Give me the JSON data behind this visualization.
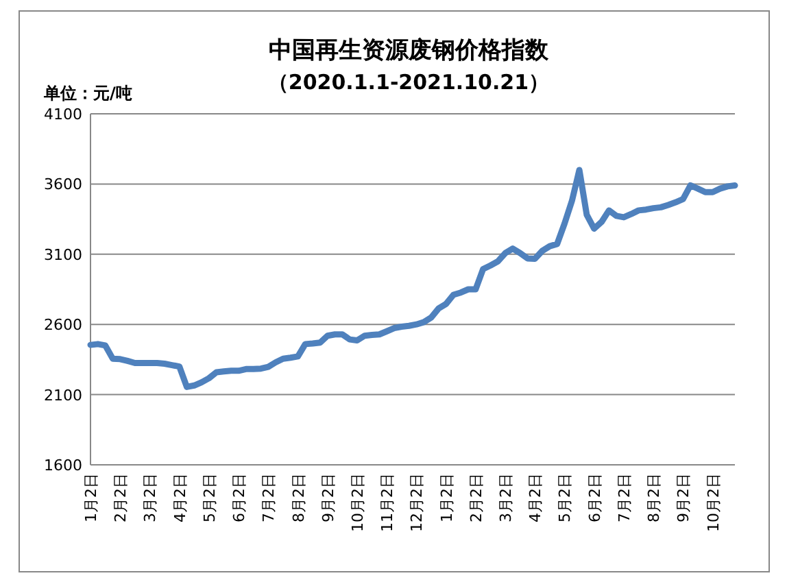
{
  "chart_data": {
    "type": "line",
    "title": "中国再生资源废钢价格指数",
    "subtitle": "（2020.1.1-2021.10.21）",
    "ylabel": "单位：元/吨",
    "categories": [
      "1月2日",
      null,
      null,
      null,
      "2月2日",
      null,
      null,
      null,
      "3月2日",
      null,
      null,
      null,
      "4月2日",
      null,
      null,
      null,
      "5月2日",
      null,
      null,
      null,
      "6月2日",
      null,
      null,
      null,
      "7月2日",
      null,
      null,
      null,
      "8月2日",
      null,
      null,
      null,
      "9月2日",
      null,
      null,
      null,
      "10月2日",
      null,
      null,
      null,
      "11月2日",
      null,
      null,
      null,
      "12月2日",
      null,
      null,
      null,
      "1月2日",
      null,
      null,
      null,
      "2月2日",
      null,
      null,
      null,
      "3月2日",
      null,
      null,
      null,
      "4月2日",
      null,
      null,
      null,
      "5月2日",
      null,
      null,
      null,
      "6月2日",
      null,
      null,
      null,
      "7月2日",
      null,
      null,
      null,
      "8月2日",
      null,
      null,
      null,
      "9月2日",
      null,
      null,
      null,
      "10月2日",
      null,
      null,
      null
    ],
    "series": [
      {
        "color": "#4f81bd",
        "values": [
          2454,
          2460,
          2450,
          2356,
          2353,
          2340,
          2325,
          2325,
          2325,
          2325,
          2320,
          2310,
          2300,
          2155,
          2165,
          2188,
          2217,
          2259,
          2265,
          2270,
          2270,
          2282,
          2282,
          2285,
          2298,
          2330,
          2356,
          2363,
          2372,
          2460,
          2464,
          2470,
          2519,
          2529,
          2529,
          2493,
          2486,
          2519,
          2525,
          2529,
          2551,
          2574,
          2584,
          2590,
          2600,
          2616,
          2649,
          2714,
          2746,
          2811,
          2827,
          2850,
          2850,
          2994,
          3020,
          3049,
          3108,
          3140,
          3108,
          3070,
          3067,
          3124,
          3157,
          3173,
          3318,
          3480,
          3700,
          3380,
          3282,
          3330,
          3412,
          3373,
          3363,
          3386,
          3412,
          3418,
          3428,
          3434,
          3451,
          3470,
          3493,
          3590,
          3567,
          3542,
          3542,
          3567,
          3583,
          3590
        ]
      }
    ],
    "ylim": [
      1600,
      4100
    ],
    "yticks": [
      1600,
      2100,
      2600,
      3100,
      3600,
      4100
    ],
    "grid": "y",
    "marker": "none",
    "line_style": "solid"
  }
}
